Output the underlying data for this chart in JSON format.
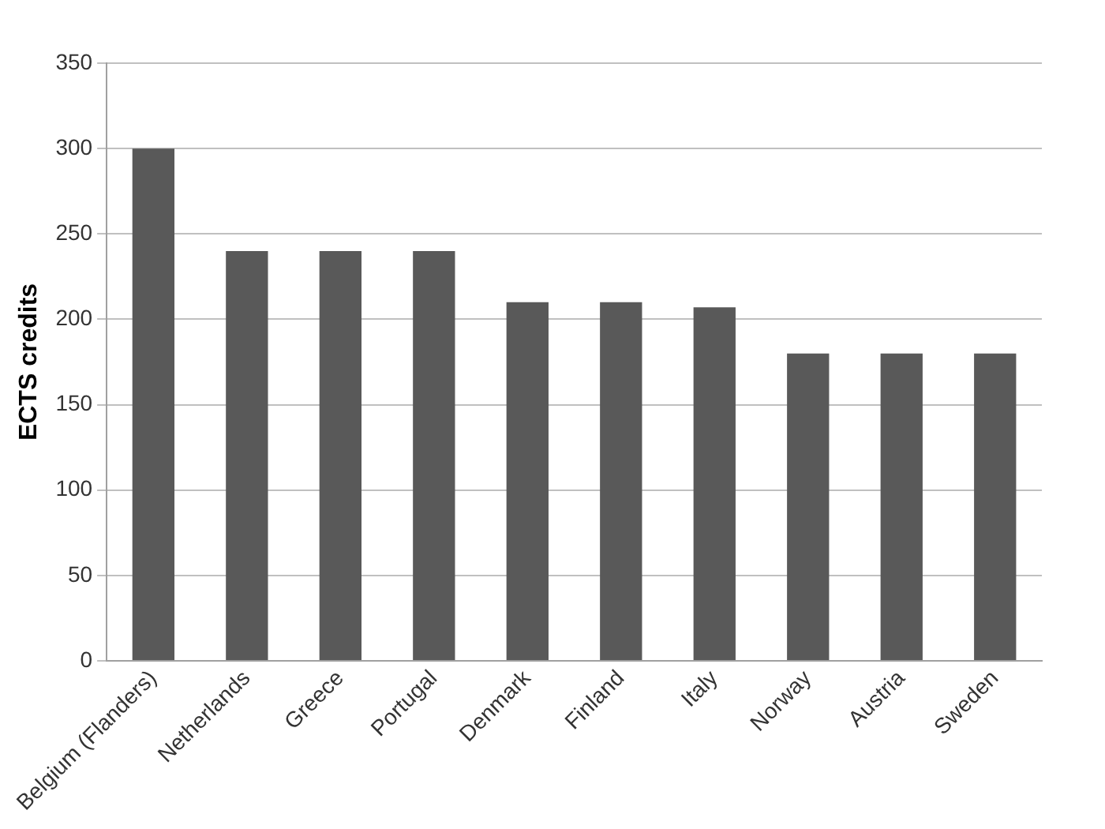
{
  "chart_data": {
    "type": "bar",
    "ylabel": "ECTS credits",
    "categories": [
      "Belgium (Flanders)",
      "Netherlands",
      "Greece",
      "Portugal",
      "Denmark",
      "Finland",
      "Italy",
      "Norway",
      "Austria",
      "Sweden"
    ],
    "values": [
      300,
      240,
      240,
      240,
      210,
      210,
      207,
      180,
      180,
      180
    ],
    "color": "#595959",
    "ylim": [
      0,
      350
    ],
    "yticks": [
      0,
      50,
      100,
      150,
      200,
      250,
      300,
      350
    ],
    "grid": "y",
    "legend": false
  }
}
